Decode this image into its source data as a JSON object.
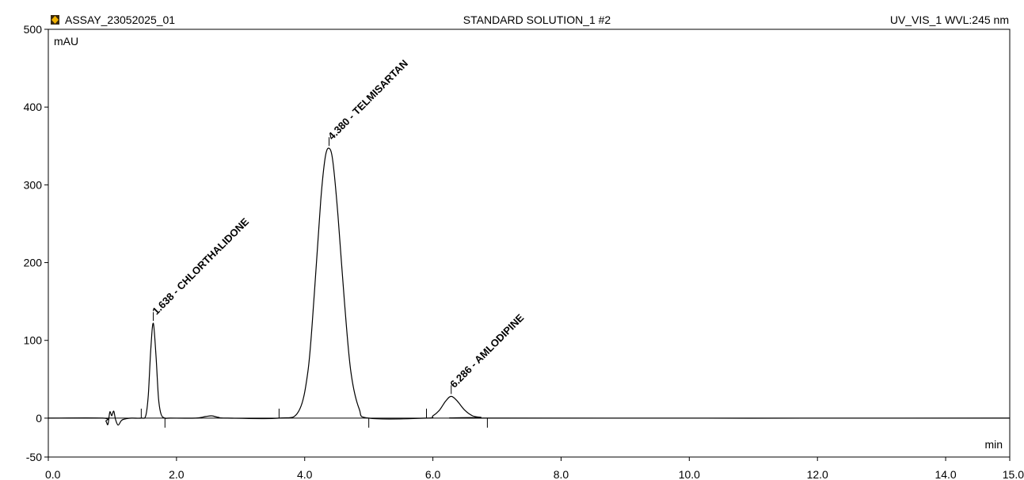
{
  "header": {
    "sequence": "ASSAY_23052025_01",
    "sample": "STANDARD SOLUTION_1 #2",
    "channel": "UV_VIS_1 WVL:245 nm",
    "icon": "chromeleon-icon"
  },
  "chart_data": {
    "type": "line",
    "title": "STANDARD SOLUTION_1 #2",
    "xlabel": "min",
    "ylabel": "mAU",
    "xlim": [
      0.0,
      15.0
    ],
    "ylim": [
      -50,
      500
    ],
    "xticks": [
      "0.0",
      "2.0",
      "4.0",
      "6.0",
      "8.0",
      "10.0",
      "12.0",
      "14.0",
      "15.0"
    ],
    "yticks": [
      "-50",
      "0",
      "100",
      "200",
      "300",
      "400",
      "500"
    ],
    "grid": false,
    "series": [
      {
        "color": "#000000",
        "x": [
          0.0,
          0.85,
          0.9,
          0.93,
          0.96,
          0.99,
          1.02,
          1.05,
          1.09,
          1.14,
          1.2,
          1.3,
          1.45,
          1.52,
          1.56,
          1.6,
          1.638,
          1.68,
          1.72,
          1.76,
          1.82,
          1.9,
          2.3,
          2.45,
          2.55,
          2.65,
          2.8,
          3.6,
          3.9,
          4.05,
          4.15,
          4.25,
          4.32,
          4.38,
          4.44,
          4.52,
          4.62,
          4.72,
          4.85,
          5.0,
          5.9,
          6.0,
          6.1,
          6.2,
          6.286,
          6.38,
          6.5,
          6.62,
          6.75,
          6.9,
          15.0
        ],
        "y": [
          0,
          0,
          -4,
          -8,
          8,
          3,
          9,
          -2,
          -9,
          -3,
          -1,
          0,
          0,
          3,
          30,
          90,
          122,
          80,
          25,
          5,
          0,
          0,
          0,
          2,
          3,
          1,
          0,
          0,
          8,
          60,
          160,
          280,
          335,
          347,
          330,
          260,
          150,
          60,
          12,
          0,
          0,
          3,
          10,
          22,
          28,
          22,
          10,
          3,
          1,
          0,
          0
        ]
      }
    ],
    "peaks": [
      {
        "rt": 1.638,
        "label": "1.638 - CHLORTHALIDONE",
        "height": 122
      },
      {
        "rt": 4.38,
        "label": "4.380 - TELMISARTAN",
        "height": 347
      },
      {
        "rt": 6.286,
        "label": "6.286 - AMLODIPINE",
        "height": 28
      }
    ],
    "integration_marks": [
      1.45,
      1.82,
      3.6,
      5.0,
      5.9,
      6.85
    ]
  }
}
